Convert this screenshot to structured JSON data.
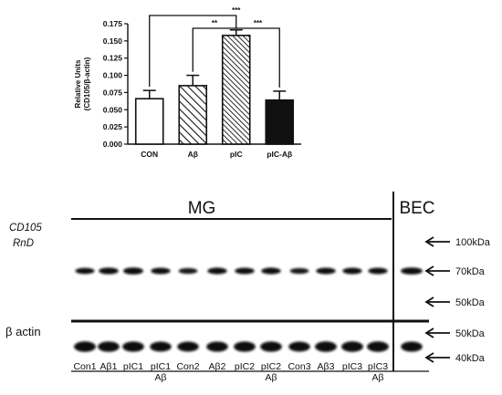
{
  "chart_data": [
    {
      "type": "bar",
      "categories": [
        "CON",
        "Aβ",
        "pIC",
        "pIC-Aβ"
      ],
      "values": [
        0.066,
        0.085,
        0.158,
        0.064
      ],
      "errors": [
        0.012,
        0.015,
        0.008,
        0.013
      ],
      "bar_styles": [
        "white",
        "diagonal-hatch",
        "diagonal-hatch-dense",
        "black"
      ],
      "ylabel": "Relative Units\n(CD105/β-actin)",
      "ylim": [
        0,
        0.175
      ],
      "yticks": [
        "0.000",
        "0.025",
        "0.050",
        "0.075",
        "0.100",
        "0.125",
        "0.150",
        "0.175"
      ],
      "significance": [
        {
          "from": "CON",
          "to": "pIC",
          "label": "***"
        },
        {
          "from": "Aβ",
          "to": "pIC",
          "label": "**"
        },
        {
          "from": "pIC",
          "to": "pIC-Aβ",
          "label": "***"
        }
      ]
    },
    {
      "type": "western-blot",
      "groups": [
        {
          "label": "MG",
          "lanes": 12
        },
        {
          "label": "BEC",
          "lanes": 1
        }
      ],
      "panels": [
        {
          "label": "CD105\nRnD",
          "markers": [
            "100kDa",
            "70kDa",
            "50kDa"
          ],
          "band_intensity": [
            0.72,
            0.85,
            0.95,
            0.8,
            0.6,
            0.82,
            0.8,
            0.82,
            0.58,
            0.8,
            0.78,
            0.75,
            0.95
          ]
        },
        {
          "label": "β actin",
          "markers": [
            "50kDa",
            "40kDa"
          ],
          "band_intensity": [
            0.95,
            0.92,
            0.9,
            0.85,
            0.85,
            0.88,
            0.9,
            0.9,
            0.85,
            0.95,
            0.95,
            0.95,
            0.88
          ]
        }
      ],
      "lane_labels": [
        "Con1",
        "Aβ1",
        "pIC1",
        "pIC1\nAβ",
        "Con2",
        "Aβ2",
        "pIC2",
        "pIC2\nAβ",
        "Con3",
        "Aβ3",
        "pIC3",
        "pIC3\nAβ"
      ]
    }
  ]
}
